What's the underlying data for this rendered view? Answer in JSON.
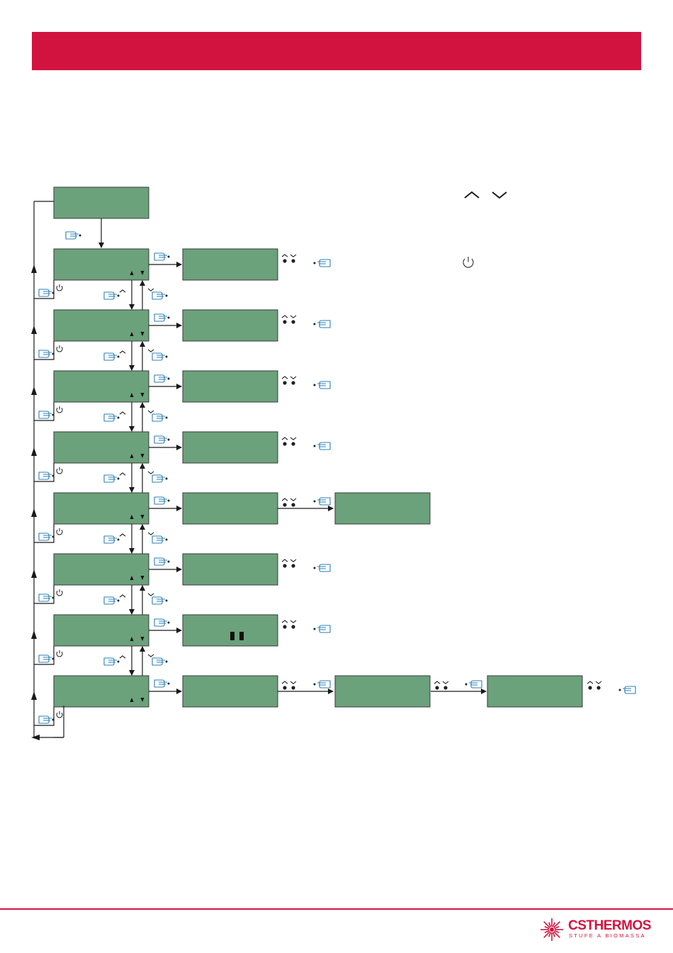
{
  "colors": {
    "accent": "#d3133f",
    "lcd": "#6ba17b",
    "line": "#1a1a1a",
    "hand_icon": "#2a7fb8"
  },
  "header": {
    "title": ""
  },
  "menu": {
    "root_screen": "lcd-screen",
    "rows": 8,
    "row_pattern": [
      "single",
      "single",
      "single",
      "single",
      "double",
      "single",
      "single",
      "triple"
    ],
    "icons": [
      "hand-press-icon",
      "power-icon",
      "chevron-up-icon",
      "chevron-down-icon",
      "arrow-up-down-indicator"
    ]
  },
  "legend": {
    "icons": [
      "chevron-up-icon",
      "chevron-down-icon",
      "power-icon"
    ]
  },
  "logo": {
    "brand_cs": "CS",
    "brand_thermos": "THERMOS",
    "tagline": "STUFE A BIOMASSA"
  }
}
